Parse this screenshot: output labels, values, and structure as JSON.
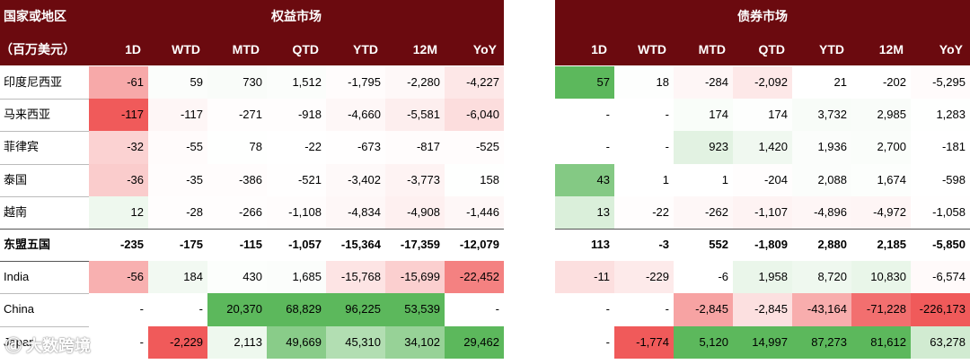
{
  "header": {
    "region_label": "国家或地区",
    "unit_label": "（百万美元）",
    "equity_title": "权益市场",
    "bond_title": "债券市场"
  },
  "watermark": {
    "text": "大数跨境"
  },
  "colors": {
    "header_bg": "#6b0a0f",
    "positive": "#4caf50",
    "negative": "#f44336"
  },
  "chart_data": {
    "type": "table",
    "title": "",
    "column_groups": [
      "权益市场",
      "债券市场"
    ],
    "columns": [
      "1D",
      "WTD",
      "MTD",
      "QTD",
      "YTD",
      "12M",
      "YoY"
    ],
    "rows": [
      {
        "name": "印度尼西亚",
        "bold": false,
        "equity": [
          "-61",
          "59",
          "730",
          "1,512",
          "-1,795",
          "-2,280",
          "-4,227"
        ],
        "bond": [
          "57",
          "18",
          "-284",
          "-2,092",
          "21",
          "-202",
          "-5,295"
        ]
      },
      {
        "name": "马来西亚",
        "bold": false,
        "equity": [
          "-117",
          "-117",
          "-271",
          "-918",
          "-4,660",
          "-5,581",
          "-6,040"
        ],
        "bond": [
          "-",
          "-",
          "174",
          "174",
          "3,732",
          "2,985",
          "1,283"
        ]
      },
      {
        "name": "菲律宾",
        "bold": false,
        "equity": [
          "-32",
          "-55",
          "78",
          "-22",
          "-673",
          "-817",
          "-525"
        ],
        "bond": [
          "-",
          "-",
          "923",
          "1,420",
          "1,936",
          "2,700",
          "-181"
        ]
      },
      {
        "name": "泰国",
        "bold": false,
        "equity": [
          "-36",
          "-35",
          "-386",
          "-521",
          "-3,402",
          "-3,773",
          "158"
        ],
        "bond": [
          "43",
          "1",
          "1",
          "-204",
          "2,088",
          "1,674",
          "-598"
        ]
      },
      {
        "name": "越南",
        "bold": false,
        "equity": [
          "12",
          "-28",
          "-266",
          "-1,108",
          "-4,834",
          "-4,908",
          "-1,446"
        ],
        "bond": [
          "13",
          "-22",
          "-262",
          "-1,107",
          "-4,896",
          "-4,972",
          "-1,058"
        ]
      },
      {
        "name": "东盟五国",
        "bold": true,
        "equity": [
          "-235",
          "-175",
          "-115",
          "-1,057",
          "-15,364",
          "-17,359",
          "-12,079"
        ],
        "bond": [
          "113",
          "-3",
          "552",
          "-1,809",
          "2,880",
          "2,185",
          "-5,850"
        ]
      },
      {
        "name": "India",
        "bold": false,
        "equity": [
          "-56",
          "184",
          "430",
          "1,685",
          "-15,768",
          "-15,699",
          "-22,452"
        ],
        "bond": [
          "-11",
          "-229",
          "-6",
          "1,958",
          "8,720",
          "10,830",
          "-6,574"
        ]
      },
      {
        "name": "China",
        "bold": false,
        "equity": [
          "-",
          "-",
          "20,370",
          "68,829",
          "96,225",
          "53,539",
          "-"
        ],
        "bond": [
          "-",
          "-",
          "-2,845",
          "-2,845",
          "-43,164",
          "-71,228",
          "-226,173"
        ]
      },
      {
        "name": "Japan",
        "bold": false,
        "equity": [
          "-",
          "-2,229",
          "2,113",
          "49,669",
          "45,310",
          "34,102",
          "29,462"
        ],
        "bond": [
          "-",
          "-1,774",
          "5,120",
          "14,997",
          "87,273",
          "81,612",
          "63,278"
        ]
      }
    ]
  }
}
